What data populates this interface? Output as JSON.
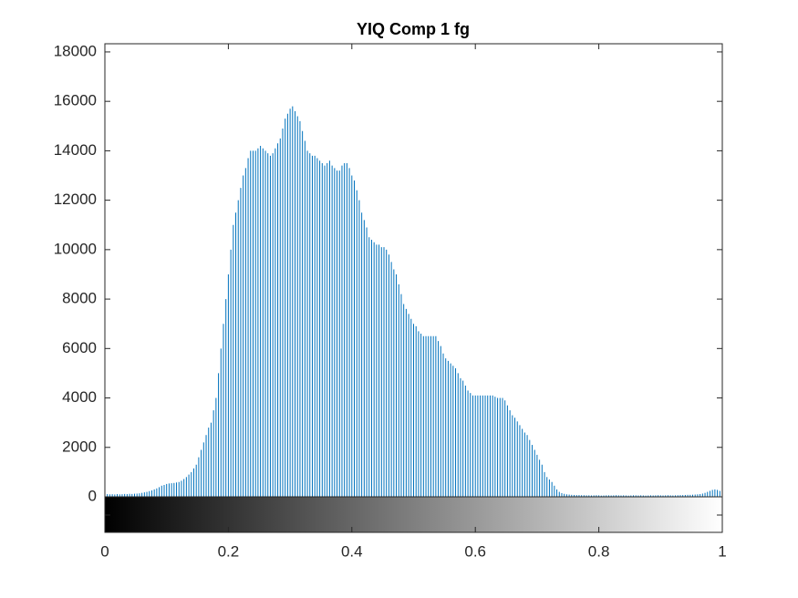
{
  "chart_data": {
    "type": "stem",
    "title": "YIQ Comp 1 fg",
    "color": "#0072bd",
    "xlim": [
      0,
      1
    ],
    "xticks": [
      0,
      0.2,
      0.4,
      0.6,
      0.8,
      1
    ],
    "ylim": [
      0,
      18330
    ],
    "yticks": [
      0,
      2000,
      4000,
      6000,
      8000,
      10000,
      12000,
      14000,
      16000,
      18000
    ],
    "x": [
      0,
      0.004,
      0.008,
      0.012,
      0.016,
      0.02,
      0.024,
      0.028,
      0.032,
      0.036,
      0.04,
      0.044,
      0.048,
      0.052,
      0.056,
      0.06,
      0.064,
      0.068,
      0.072,
      0.076,
      0.08,
      0.084,
      0.088,
      0.092,
      0.096,
      0.1,
      0.104,
      0.108,
      0.112,
      0.116,
      0.12,
      0.124,
      0.128,
      0.132,
      0.136,
      0.14,
      0.144,
      0.148,
      0.152,
      0.156,
      0.16,
      0.164,
      0.168,
      0.172,
      0.176,
      0.18,
      0.184,
      0.188,
      0.192,
      0.196,
      0.2,
      0.204,
      0.208,
      0.212,
      0.216,
      0.22,
      0.224,
      0.228,
      0.232,
      0.236,
      0.24,
      0.244,
      0.248,
      0.252,
      0.256,
      0.26,
      0.264,
      0.268,
      0.272,
      0.276,
      0.28,
      0.284,
      0.288,
      0.292,
      0.296,
      0.3,
      0.304,
      0.308,
      0.312,
      0.316,
      0.32,
      0.324,
      0.328,
      0.332,
      0.336,
      0.34,
      0.344,
      0.348,
      0.352,
      0.356,
      0.36,
      0.364,
      0.368,
      0.372,
      0.376,
      0.38,
      0.384,
      0.388,
      0.392,
      0.396,
      0.4,
      0.404,
      0.408,
      0.412,
      0.416,
      0.42,
      0.424,
      0.428,
      0.432,
      0.436,
      0.44,
      0.444,
      0.448,
      0.452,
      0.456,
      0.46,
      0.464,
      0.468,
      0.472,
      0.476,
      0.48,
      0.484,
      0.488,
      0.492,
      0.496,
      0.5,
      0.504,
      0.508,
      0.512,
      0.516,
      0.52,
      0.524,
      0.528,
      0.532,
      0.536,
      0.54,
      0.544,
      0.548,
      0.552,
      0.556,
      0.56,
      0.564,
      0.568,
      0.572,
      0.576,
      0.58,
      0.584,
      0.588,
      0.592,
      0.596,
      0.6,
      0.604,
      0.608,
      0.612,
      0.616,
      0.62,
      0.624,
      0.628,
      0.632,
      0.636,
      0.64,
      0.644,
      0.648,
      0.652,
      0.656,
      0.66,
      0.664,
      0.668,
      0.672,
      0.676,
      0.68,
      0.684,
      0.688,
      0.692,
      0.696,
      0.7,
      0.704,
      0.708,
      0.712,
      0.716,
      0.72,
      0.724,
      0.728,
      0.732,
      0.736,
      0.74,
      0.744,
      0.748,
      0.752,
      0.756,
      0.76,
      0.764,
      0.768,
      0.772,
      0.776,
      0.78,
      0.784,
      0.788,
      0.792,
      0.796,
      0.8,
      0.804,
      0.808,
      0.812,
      0.816,
      0.82,
      0.824,
      0.828,
      0.832,
      0.836,
      0.84,
      0.844,
      0.848,
      0.852,
      0.856,
      0.86,
      0.864,
      0.868,
      0.872,
      0.876,
      0.88,
      0.884,
      0.888,
      0.892,
      0.896,
      0.9,
      0.904,
      0.908,
      0.912,
      0.916,
      0.92,
      0.924,
      0.928,
      0.932,
      0.936,
      0.94,
      0.944,
      0.948,
      0.952,
      0.956,
      0.96,
      0.964,
      0.968,
      0.972,
      0.976,
      0.98,
      0.984,
      0.988,
      0.992,
      0.996,
      1
    ],
    "values": [
      120,
      110,
      100,
      105,
      95,
      110,
      100,
      105,
      115,
      110,
      120,
      115,
      125,
      130,
      140,
      160,
      180,
      200,
      230,
      260,
      300,
      340,
      390,
      450,
      480,
      520,
      540,
      550,
      560,
      580,
      600,
      650,
      720,
      800,
      900,
      1000,
      1150,
      1300,
      1600,
      1900,
      2200,
      2500,
      2800,
      3000,
      3500,
      4000,
      5000,
      6000,
      7000,
      8000,
      9000,
      10000,
      11000,
      11500,
      12000,
      12500,
      13000,
      13300,
      13700,
      14000,
      14000,
      14000,
      14100,
      14200,
      14100,
      14000,
      13900,
      13800,
      13900,
      14100,
      14300,
      14500,
      14900,
      15300,
      15500,
      15700,
      15800,
      15600,
      15400,
      15200,
      14800,
      14400,
      14000,
      13900,
      13800,
      13800,
      13700,
      13600,
      13500,
      13400,
      13500,
      13600,
      13400,
      13300,
      13200,
      13200,
      13400,
      13500,
      13500,
      13300,
      13000,
      12800,
      12400,
      12000,
      11500,
      11200,
      10900,
      10500,
      10400,
      10300,
      10200,
      10200,
      10100,
      10100,
      10000,
      9800,
      9500,
      9200,
      9000,
      8600,
      8200,
      7800,
      7600,
      7400,
      7200,
      7000,
      6900,
      6700,
      6600,
      6500,
      6500,
      6500,
      6500,
      6500,
      6500,
      6300,
      6100,
      5800,
      5600,
      5500,
      5400,
      5300,
      5200,
      5000,
      4800,
      4700,
      4500,
      4300,
      4200,
      4100,
      4100,
      4100,
      4100,
      4100,
      4100,
      4100,
      4100,
      4100,
      4050,
      4000,
      4000,
      4000,
      3900,
      3700,
      3500,
      3300,
      3200,
      3050,
      2900,
      2750,
      2600,
      2500,
      2300,
      2100,
      1900,
      1700,
      1500,
      1300,
      1000,
      800,
      700,
      600,
      450,
      300,
      200,
      150,
      120,
      100,
      90,
      80,
      75,
      70,
      70,
      65,
      65,
      60,
      60,
      55,
      60,
      65,
      60,
      50,
      55,
      60,
      60,
      55,
      60,
      65,
      60,
      55,
      60,
      55,
      50,
      55,
      60,
      60,
      55,
      60,
      55,
      50,
      55,
      60,
      55,
      60,
      65,
      60,
      55,
      60,
      65,
      60,
      55,
      60,
      65,
      70,
      70,
      75,
      80,
      80,
      85,
      90,
      100,
      110,
      130,
      160,
      200,
      240,
      280,
      300,
      280,
      240,
      200
    ]
  }
}
